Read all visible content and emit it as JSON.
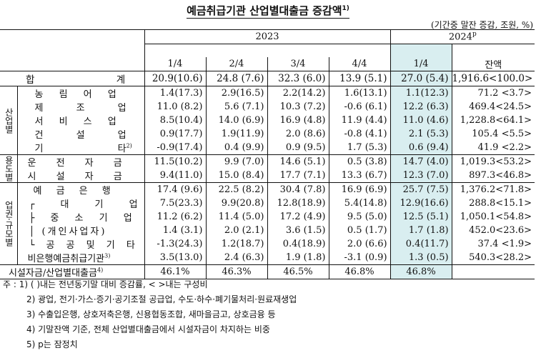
{
  "title": "예금취급기관 산업별대출금 증감액",
  "title_sup": "1)",
  "unit": "(기간중 말잔 증감, 조원, %)",
  "header": {
    "year_2023": "2023",
    "year_2024": "2024",
    "year_2024_sup": "p",
    "q1": "1/4",
    "q2": "2/4",
    "q3": "3/4",
    "q4": "4/4",
    "q1_2024": "1/4",
    "balance": "잔액"
  },
  "groups": {
    "industry": "산업별",
    "purpose": "용도별",
    "type": "업권·규모별"
  },
  "rows": [
    {
      "label": "합 계",
      "c1": "20.9(10.6)",
      "c2": "24.8 (7.6)",
      "c3": "32.3 (6.0)",
      "c4": "13.9 (5.1)",
      "c5": "27.0 (5.4)",
      "c6": "1,916.6<100.0>"
    },
    {
      "label": "농 림 어 업",
      "c1": "1.4(17.3)",
      "c2": "2.9(16.5)",
      "c3": "2.2(14.2)",
      "c4": "1.6(13.1)",
      "c5": "1.1(12.3)",
      "c6": "71.2 <3.7>"
    },
    {
      "label": "제 조 업",
      "c1": "11.0 (8.2)",
      "c2": "5.6 (7.1)",
      "c3": "10.3 (7.2)",
      "c4": "-0.6 (6.1)",
      "c5": "12.2 (6.3)",
      "c6": "469.4<24.5>"
    },
    {
      "label": "서 비 스 업",
      "c1": "8.5(10.4)",
      "c2": "14.0 (6.9)",
      "c3": "16.9 (4.8)",
      "c4": "11.9 (4.4)",
      "c5": "11.0 (4.6)",
      "c6": "1,228.8<64.1>"
    },
    {
      "label": "건 설 업",
      "c1": "0.9(17.7)",
      "c2": "1.9(11.9)",
      "c3": "2.0 (8.6)",
      "c4": "-0.8 (4.1)",
      "c5": "2.1 (5.3)",
      "c6": "105.4 <5.5>"
    },
    {
      "label": "기 타",
      "label_sup": "2)",
      "c1": "-0.9(17.4)",
      "c2": "0.4 (9.9)",
      "c3": "0.9 (9.5)",
      "c4": "1.7 (5.3)",
      "c5": "0.6 (9.4)",
      "c6": "41.9 <2.2>"
    },
    {
      "label": "운 전 자 금",
      "c1": "11.5(10.2)",
      "c2": "9.9 (7.0)",
      "c3": "14.6 (5.1)",
      "c4": "0.5 (3.8)",
      "c5": "14.7 (4.0)",
      "c6": "1,019.3<53.2>"
    },
    {
      "label": "시 설 자 금",
      "c1": "9.4(11.0)",
      "c2": "15.0 (8.4)",
      "c3": "17.7 (7.1)",
      "c4": "13.3 (6.7)",
      "c5": "12.3 (7.0)",
      "c6": "897.3<46.8>"
    },
    {
      "label": "예 금 은 행",
      "c1": "17.4 (9.6)",
      "c2": "22.5 (8.2)",
      "c3": "30.4 (7.8)",
      "c4": "16.9 (6.9)",
      "c5": "25.7 (7.5)",
      "c6": "1,376.2<71.8>"
    },
    {
      "label": "대 기 업",
      "c1": "7.5(23.3)",
      "c2": "9.9(20.8)",
      "c3": "12.8(18.9)",
      "c4": "5.4(14.8)",
      "c5": "12.9(16.6)",
      "c6": "288.8<15.1>"
    },
    {
      "label": "중 소 기 업",
      "c1": "11.2 (6.2)",
      "c2": "11.4 (5.0)",
      "c3": "17.2 (4.9)",
      "c4": "9.5 (5.0)",
      "c5": "12.5 (5.1)",
      "c6": "1,050.1<54.8>"
    },
    {
      "label": "(개인사업자)",
      "c1": "1.4 (3.1)",
      "c2": "2.0 (2.1)",
      "c3": "3.6 (1.5)",
      "c4": "0.5 (1.7)",
      "c5": "1.7 (1.8)",
      "c6": "452.0<23.6>"
    },
    {
      "label": "공 공 및 기 타",
      "c1": "-1.3(24.3)",
      "c2": "1.2(18.7)",
      "c3": "0.4(18.9)",
      "c4": "2.0 (6.6)",
      "c5": "0.4(11.7)",
      "c6": "37.4 <1.9>"
    },
    {
      "label": "비은행예금취급기관",
      "label_sup": "3)",
      "c1": "3.5(13.0)",
      "c2": "2.4 (6.3)",
      "c3": "1.9 (1.8)",
      "c4": "-3.1 (0.9)",
      "c5": "1.3 (0.5)",
      "c6": "540.3<28.2>"
    },
    {
      "label": "시설자금/산업별대출금",
      "label_sup": "4)",
      "c1": "46.1%",
      "c2": "46.3%",
      "c3": "46.5%",
      "c4": "46.8%",
      "c5": "46.8%",
      "c6": ""
    }
  ],
  "notes": [
    "주 : 1) ( )내는 전년동기말 대비 증감률, < >내는 구성비",
    "2) 광업, 전기·가스·증기·공기조절 공급업, 수도·하수·폐기물처리·원료재생업",
    "3) 수출입은행, 상호저축은행, 신용협동조합, 새마을금고, 상호금융 등",
    "4) 기말잔액 기준, 전체 산업별대출금에서 시설자금이 차지하는 비중",
    "5) p는 잠정치"
  ]
}
